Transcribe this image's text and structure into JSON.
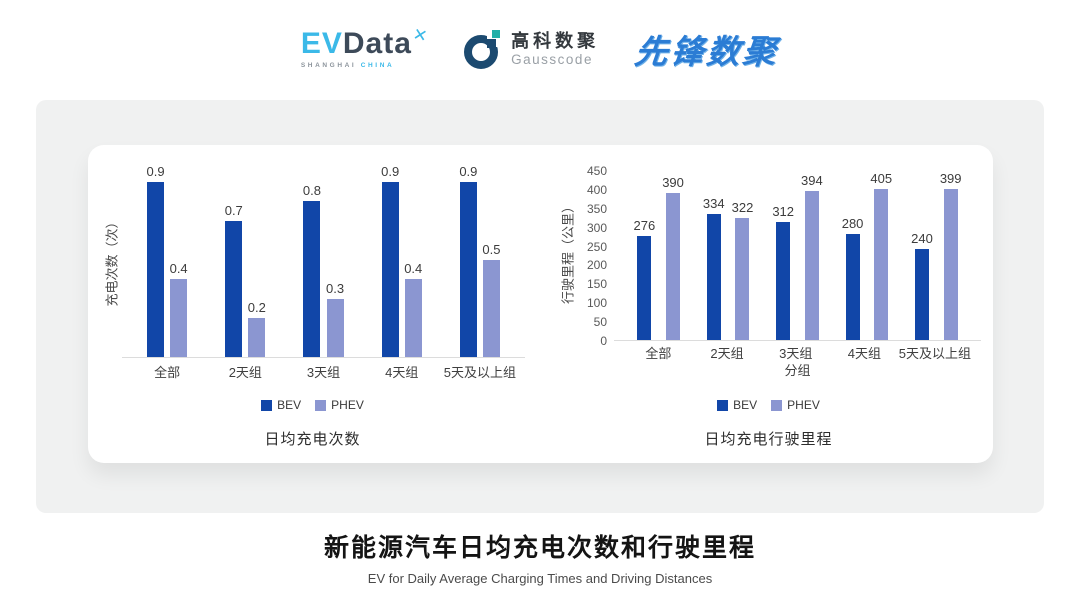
{
  "header": {
    "logos": {
      "evdata": {
        "ev": "EV",
        "data": "Data",
        "sparkle": "✕",
        "sub_left": "SHANGHAI",
        "sub_right": "CHINA"
      },
      "gausscode": {
        "cn": "高科数聚",
        "en": "Gausscode"
      },
      "xianfeng": {
        "text": "先锋数聚"
      }
    }
  },
  "colors": {
    "bev": "#1146A8",
    "phev": "#8B96D1",
    "stage_bg": "#F0F1F1",
    "baseline": "#DCDCDC"
  },
  "chart_data": [
    {
      "type": "bar",
      "title": "日均充电次数",
      "categories": [
        "全部",
        "2天组",
        "3天组",
        "4天组",
        "5天及以上组"
      ],
      "series": [
        {
          "name": "BEV",
          "color": "#1146A8",
          "values": [
            0.9,
            0.7,
            0.8,
            0.9,
            0.9
          ]
        },
        {
          "name": "PHEV",
          "color": "#8B96D1",
          "values": [
            0.4,
            0.2,
            0.3,
            0.4,
            0.5
          ]
        }
      ],
      "xlabel": "",
      "ylabel": "充电次数（次）",
      "ylim": [
        0,
        1.0
      ],
      "yticks": [],
      "grid": false,
      "data_labels": true,
      "legend_position": "bottom"
    },
    {
      "type": "bar",
      "title": "日均充电行驶里程",
      "categories": [
        "全部",
        "2天组",
        "3天组",
        "4天组",
        "5天及以上组"
      ],
      "series": [
        {
          "name": "BEV",
          "color": "#1146A8",
          "values": [
            276,
            334,
            312,
            280,
            240
          ]
        },
        {
          "name": "PHEV",
          "color": "#8B96D1",
          "values": [
            390,
            322,
            394,
            405,
            399
          ]
        }
      ],
      "xlabel": "分组",
      "ylabel": "行驶里程（公里）",
      "ylim": [
        0,
        450
      ],
      "yticks": [
        0,
        50,
        100,
        150,
        200,
        250,
        300,
        350,
        400,
        450
      ],
      "grid": false,
      "data_labels": true,
      "legend_position": "bottom"
    }
  ],
  "footer": {
    "title": "新能源汽车日均充电次数和行驶里程",
    "subtitle": "EV for Daily Average Charging Times and Driving Distances"
  }
}
